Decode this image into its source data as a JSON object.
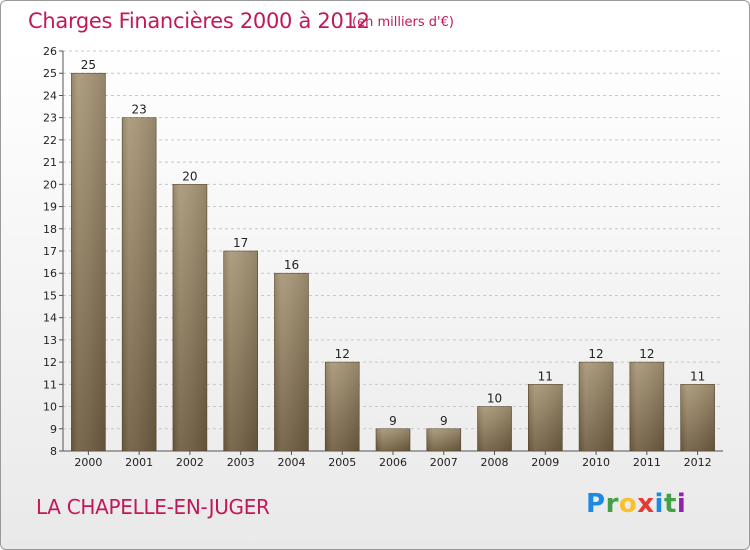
{
  "header": {
    "title": "Charges Financières 2000 à 2012",
    "subtitle": "(en milliers d'€)"
  },
  "footer": {
    "commune": "LA CHAPELLE-EN-JUGER",
    "logo": {
      "letters": [
        "P",
        "r",
        "o",
        "x",
        "i",
        "t",
        "i"
      ],
      "colors": [
        "#1e88e5",
        "#43a047",
        "#fbc02d",
        "#e53935",
        "#1e88e5",
        "#43a047",
        "#8e24aa"
      ]
    }
  },
  "colors": {
    "bar_top": "#a89676",
    "bar_bottom": "#6e5c40",
    "grid": "#c8c8c8",
    "title": "#c2185b"
  },
  "chart_data": {
    "type": "bar",
    "title": "Charges Financières 2000 à 2012",
    "subtitle": "(en milliers d'€)",
    "xlabel": "",
    "ylabel": "",
    "categories": [
      "2000",
      "2001",
      "2002",
      "2003",
      "2004",
      "2005",
      "2006",
      "2007",
      "2008",
      "2009",
      "2010",
      "2011",
      "2012"
    ],
    "values": [
      25,
      23,
      20,
      17,
      16,
      12,
      9,
      9,
      10,
      11,
      12,
      12,
      11
    ],
    "ylim": [
      8,
      26
    ],
    "yticks": [
      8,
      9,
      10,
      11,
      12,
      13,
      14,
      15,
      16,
      17,
      18,
      19,
      20,
      21,
      22,
      23,
      24,
      25,
      26
    ],
    "grid": true,
    "data_labels": true
  }
}
